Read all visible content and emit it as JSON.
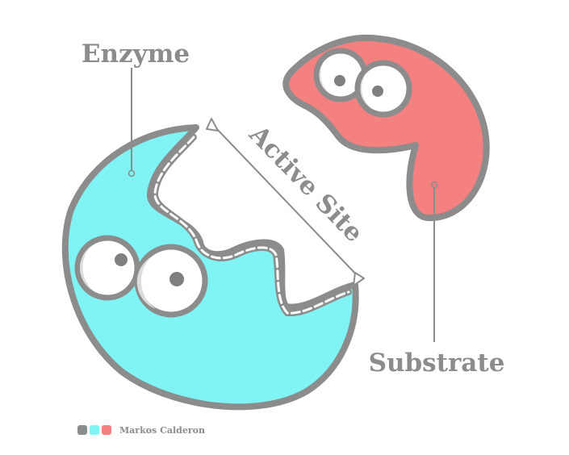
{
  "labels": {
    "enzyme": "Enzyme",
    "active_site": "Active Site",
    "substrate": "Substrate"
  },
  "credit": {
    "author": "Markos Calderon"
  },
  "colors": {
    "enzyme_fill": "#80f4f4",
    "substrate_fill": "#f58080",
    "outline": "#8c8c8c",
    "text": "#8c8c8c",
    "eye_white": "#ffffff",
    "eye_shade": "#dcdcdc",
    "pupil": "#7f7f7f",
    "swatches": [
      "#8c8c8c",
      "#80f4f4",
      "#f58080"
    ]
  }
}
